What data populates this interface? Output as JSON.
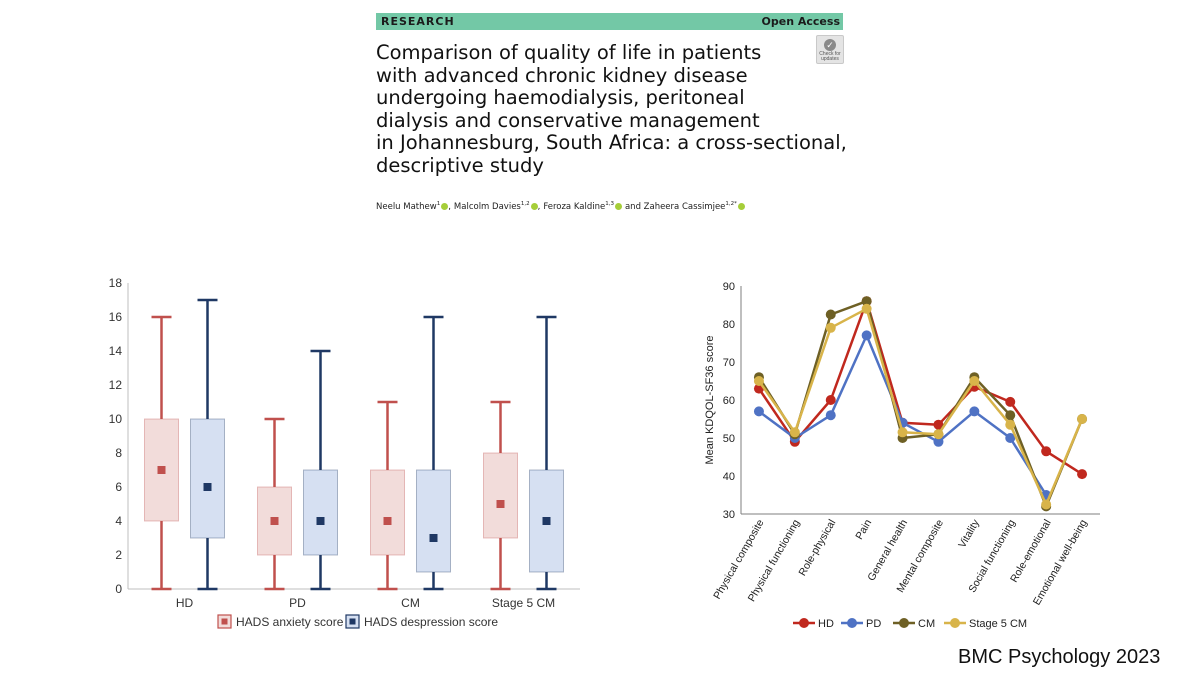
{
  "paper": {
    "section_label": "RESEARCH",
    "access_label": "Open Access",
    "badge_text": "Check for updates",
    "title_lines": [
      "Comparison of quality of life in patients",
      "with advanced chronic kidney disease",
      "undergoing haemodialysis, peritoneal",
      "dialysis and conservative management",
      "in Johannesburg, South Africa: a cross-sectional,",
      "descriptive study"
    ],
    "authors": [
      {
        "name": "Neelu Mathew",
        "sup": "1"
      },
      {
        "name": "Malcolm Davies",
        "sup": "1,2"
      },
      {
        "name": "Feroza Kaldine",
        "sup": "1,3"
      },
      {
        "name": "and Zaheera Cassimjee",
        "sup": "1,2*"
      }
    ],
    "author_separator": ",",
    "orcid_color": "#a6ce39",
    "banner_color": "#73c8a6"
  },
  "footer": {
    "journal": "BMC Psychology 2023"
  },
  "chart_data": [
    {
      "type": "box",
      "title": "",
      "xlabel": "",
      "ylabel": "",
      "ylim": [
        0,
        18
      ],
      "yticks": [
        0,
        2,
        4,
        6,
        8,
        10,
        12,
        14,
        16,
        18
      ],
      "categories": [
        "HD",
        "PD",
        "CM",
        "Stage 5 CM"
      ],
      "legend_position": "bottom",
      "series": [
        {
          "name": "HADS anxiety score",
          "fill": "#f2dcda",
          "edge": "#c0504d",
          "marker": "#c0504d",
          "boxes": [
            {
              "min": 0,
              "q1": 4,
              "median": 7,
              "q3": 10,
              "max": 16
            },
            {
              "min": 0,
              "q1": 2,
              "median": 4,
              "q3": 6,
              "max": 10
            },
            {
              "min": 0,
              "q1": 2,
              "median": 4,
              "q3": 7,
              "max": 11
            },
            {
              "min": 0,
              "q1": 3,
              "median": 5,
              "q3": 8,
              "max": 11
            }
          ]
        },
        {
          "name": "HADS despression score",
          "fill": "#d6e0f2",
          "edge": "#1f3864",
          "marker": "#1f3864",
          "boxes": [
            {
              "min": 0,
              "q1": 3,
              "median": 6,
              "q3": 10,
              "max": 17
            },
            {
              "min": 0,
              "q1": 2,
              "median": 4,
              "q3": 7,
              "max": 14
            },
            {
              "min": 0,
              "q1": 1,
              "median": 3,
              "q3": 7,
              "max": 16
            },
            {
              "min": 0,
              "q1": 1,
              "median": 4,
              "q3": 7,
              "max": 16
            }
          ]
        }
      ]
    },
    {
      "type": "line",
      "title": "",
      "xlabel": "",
      "ylabel": "Mean KDQOL-SF36 score",
      "ylim": [
        30,
        90
      ],
      "yticks": [
        30,
        40,
        50,
        60,
        70,
        80,
        90
      ],
      "categories": [
        "Physical composite",
        "Physical functioning",
        "Role-physical",
        "Pain",
        "General health",
        "Mental composite",
        "Vitality",
        "Social functioning",
        "Role-emotional",
        "Emotional well-being"
      ],
      "legend_position": "bottom",
      "series": [
        {
          "name": "HD",
          "color": "#c0281e",
          "values": [
            63,
            49,
            60,
            86,
            54,
            53.5,
            63.5,
            59.5,
            46.5,
            40.5
          ]
        },
        {
          "name": "PD",
          "color": "#4f72c4",
          "values": [
            57,
            50,
            56,
            77,
            54,
            49,
            57,
            50,
            35,
            null
          ]
        },
        {
          "name": "CM",
          "color": "#6e6025",
          "values": [
            66,
            51,
            82.5,
            86,
            50,
            51,
            66,
            56,
            32,
            55
          ]
        },
        {
          "name": "Stage 5 CM",
          "color": "#d8b44a",
          "values": [
            65,
            51.5,
            79,
            84,
            51.5,
            51,
            65,
            53.5,
            32.5,
            55
          ]
        }
      ]
    }
  ]
}
